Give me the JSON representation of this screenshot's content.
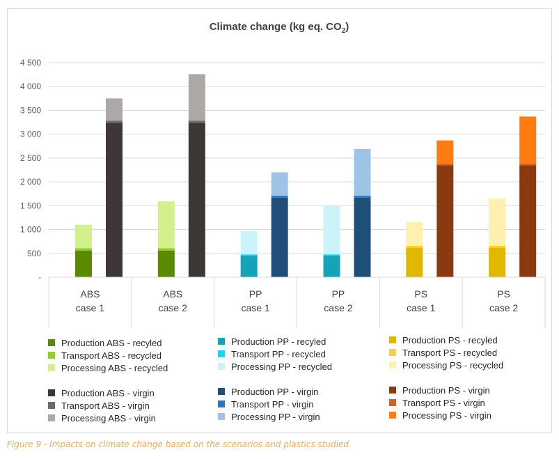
{
  "chart_data": {
    "type": "bar",
    "title": "Climate change (kg eq. CO",
    "title_subscript": "2",
    "title_suffix": ")",
    "ylim": [
      0,
      4500
    ],
    "yticks": [
      {
        "value": 0,
        "label": "-"
      },
      {
        "value": 500,
        "label": "500"
      },
      {
        "value": 1000,
        "label": "1 000"
      },
      {
        "value": 1500,
        "label": "1 500"
      },
      {
        "value": 2000,
        "label": "2 000"
      },
      {
        "value": 2500,
        "label": "2 500"
      },
      {
        "value": 3000,
        "label": "3 000"
      },
      {
        "value": 3500,
        "label": "3 500"
      },
      {
        "value": 4000,
        "label": "4 000"
      },
      {
        "value": 4500,
        "label": "4 500"
      }
    ],
    "grid": true,
    "stacked": true,
    "categories": [
      {
        "line1": "ABS",
        "line2": "case 1"
      },
      {
        "line1": "ABS",
        "line2": "case 2"
      },
      {
        "line1": "PP",
        "line2": "case 1"
      },
      {
        "line1": "PP",
        "line2": "case 2"
      },
      {
        "line1": "PS",
        "line2": "case 1"
      },
      {
        "line1": "PS",
        "line2": "case 2"
      }
    ],
    "bars": [
      {
        "category": 0,
        "slot": 0,
        "segments": [
          {
            "name": "Production ABS - recyled",
            "value": 560,
            "color": "#5b8a00"
          },
          {
            "name": "Transport ABS - recycled",
            "value": 50,
            "color": "#8fcf2b"
          },
          {
            "name": "Processing ABS - recycled",
            "value": 490,
            "color": "#d2f08c"
          }
        ]
      },
      {
        "category": 0,
        "slot": 1,
        "segments": [
          {
            "name": "Production ABS - virgin",
            "value": 3240,
            "color": "#3d3837"
          },
          {
            "name": "Transport ABS - virgin",
            "value": 40,
            "color": "#6e6868"
          },
          {
            "name": "Processing ABS - virgin",
            "value": 470,
            "color": "#ada8a8"
          }
        ]
      },
      {
        "category": 1,
        "slot": 0,
        "segments": [
          {
            "name": "Production ABS - recyled",
            "value": 560,
            "color": "#5b8a00"
          },
          {
            "name": "Transport ABS - recycled",
            "value": 50,
            "color": "#8fcf2b"
          },
          {
            "name": "Processing ABS - recycled",
            "value": 980,
            "color": "#d2f08c"
          }
        ]
      },
      {
        "category": 1,
        "slot": 1,
        "segments": [
          {
            "name": "Production ABS - virgin",
            "value": 3240,
            "color": "#3d3837"
          },
          {
            "name": "Transport ABS - virgin",
            "value": 40,
            "color": "#6e6868"
          },
          {
            "name": "Processing ABS - virgin",
            "value": 980,
            "color": "#ada8a8"
          }
        ]
      },
      {
        "category": 2,
        "slot": 0,
        "segments": [
          {
            "name": "Production PP - recyled",
            "value": 450,
            "color": "#16a3b8"
          },
          {
            "name": "Transport PP - recycled",
            "value": 30,
            "color": "#1ad3ef"
          },
          {
            "name": "Processing PP - recycled",
            "value": 490,
            "color": "#cdf3fa"
          }
        ]
      },
      {
        "category": 2,
        "slot": 1,
        "segments": [
          {
            "name": "Production PP - virgin",
            "value": 1670,
            "color": "#1f4e79"
          },
          {
            "name": "Transport PP - virgin",
            "value": 40,
            "color": "#2e75b6"
          },
          {
            "name": "Processing PP - virgin",
            "value": 490,
            "color": "#9dc3e6"
          }
        ]
      },
      {
        "category": 3,
        "slot": 0,
        "segments": [
          {
            "name": "Production PP - recyled",
            "value": 450,
            "color": "#16a3b8"
          },
          {
            "name": "Transport PP - recycled",
            "value": 30,
            "color": "#1ad3ef"
          },
          {
            "name": "Processing PP - recycled",
            "value": 1010,
            "color": "#cdf3fa"
          }
        ]
      },
      {
        "category": 3,
        "slot": 1,
        "segments": [
          {
            "name": "Production PP - virgin",
            "value": 1670,
            "color": "#1f4e79"
          },
          {
            "name": "Transport PP - virgin",
            "value": 40,
            "color": "#2e75b6"
          },
          {
            "name": "Processing PP - virgin",
            "value": 980,
            "color": "#9dc3e6"
          }
        ]
      },
      {
        "category": 4,
        "slot": 0,
        "segments": [
          {
            "name": "Production PS - recyled",
            "value": 620,
            "color": "#e0b800"
          },
          {
            "name": "Transport PS - recycled",
            "value": 40,
            "color": "#f5d23c"
          },
          {
            "name": "Processing PS - recycled",
            "value": 500,
            "color": "#fff0b0"
          }
        ]
      },
      {
        "category": 4,
        "slot": 1,
        "segments": [
          {
            "name": "Production PS - virgin",
            "value": 2350,
            "color": "#8b3a0f"
          },
          {
            "name": "Transport PS - virgin",
            "value": 30,
            "color": "#d9601a"
          },
          {
            "name": "Processing PS - virgin",
            "value": 490,
            "color": "#ff7c12"
          }
        ]
      },
      {
        "category": 5,
        "slot": 0,
        "segments": [
          {
            "name": "Production PS - recyled",
            "value": 620,
            "color": "#e0b800"
          },
          {
            "name": "Transport PS - recycled",
            "value": 40,
            "color": "#f5d23c"
          },
          {
            "name": "Processing PS - recycled",
            "value": 990,
            "color": "#fff0b0"
          }
        ]
      },
      {
        "category": 5,
        "slot": 1,
        "segments": [
          {
            "name": "Production PS - virgin",
            "value": 2350,
            "color": "#8b3a0f"
          },
          {
            "name": "Transport PS - virgin",
            "value": 30,
            "color": "#d9601a"
          },
          {
            "name": "Processing PS - virgin",
            "value": 990,
            "color": "#ff7c12"
          }
        ]
      }
    ],
    "legend": {
      "placement": "bottom",
      "groups": [
        [
          [
            {
              "label": "Production ABS - recyled",
              "color": "#5b8a00"
            },
            {
              "label": "Transport ABS - recycled",
              "color": "#8fcf2b"
            },
            {
              "label": "Processing ABS - recycled",
              "color": "#d2f08c"
            }
          ],
          [
            {
              "label": "Production ABS - virgin",
              "color": "#3d3837"
            },
            {
              "label": "Transport ABS - virgin",
              "color": "#6e6868"
            },
            {
              "label": "Processing ABS - virgin",
              "color": "#ada8a8"
            }
          ]
        ],
        [
          [
            {
              "label": "Production PP - recyled",
              "color": "#16a3b8"
            },
            {
              "label": "Transport PP - recycled",
              "color": "#1ad3ef"
            },
            {
              "label": "Processing PP - recycled",
              "color": "#cdf3fa"
            }
          ],
          [
            {
              "label": "Production PP - virgin",
              "color": "#1f4e79"
            },
            {
              "label": "Transport PP - virgin",
              "color": "#2e75b6"
            },
            {
              "label": "Processing PP - virgin",
              "color": "#9dc3e6"
            }
          ]
        ],
        [
          [
            {
              "label": "Production PS - recyled",
              "color": "#e0b800"
            },
            {
              "label": "Transport PS - recycled",
              "color": "#f5d23c"
            },
            {
              "label": "Processing PS - recycled",
              "color": "#fff0b0"
            }
          ],
          [
            {
              "label": "Production PS - virgin",
              "color": "#8b3a0f"
            },
            {
              "label": "Transport PS - virgin",
              "color": "#d9601a"
            },
            {
              "label": "Processing PS - virgin",
              "color": "#ff7c12"
            }
          ]
        ]
      ]
    }
  },
  "caption": "Figure 9 - Impacts on climate change based on the scenarios and plastics studied."
}
